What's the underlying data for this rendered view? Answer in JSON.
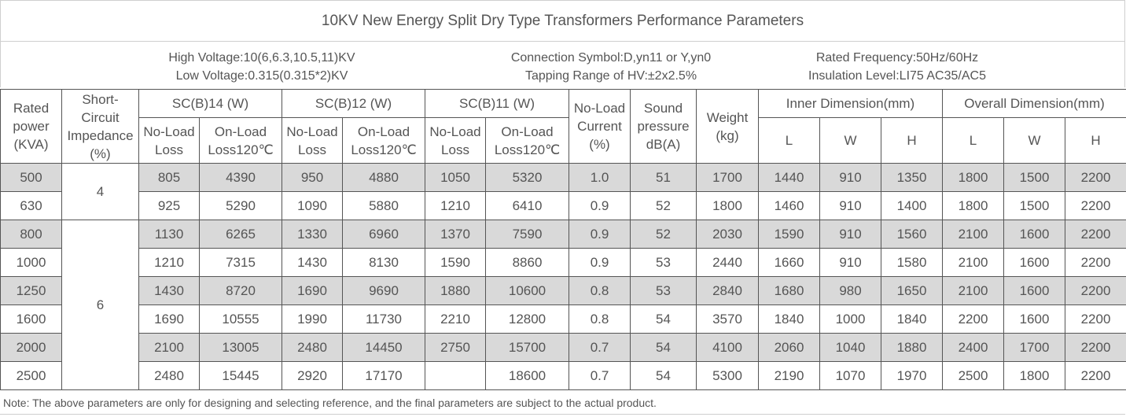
{
  "title": "10KV New Energy Split Dry Type Transformers Performance Parameters",
  "specs": {
    "high_voltage": "High Voltage:10(6,6.3,10.5,11)KV",
    "low_voltage": "Low Voltage:0.315(0.315*2)KV",
    "connection": "Connection Symbol:D,yn11 or Y,yn0",
    "tapping": "Tapping Range of HV:±2x2.5%",
    "frequency": "Rated Frequency:50Hz/60Hz",
    "insulation": "Insulation Level:LI75 AC35/AC5"
  },
  "headers": {
    "rated_power": [
      "Rated",
      "power",
      "(KVA)"
    ],
    "impedance": [
      "Short-",
      "Circuit",
      "Impedance",
      "(%)"
    ],
    "sc14": "SC(B)14 (W)",
    "sc12": "SC(B)12 (W)",
    "sc11": "SC(B)11 (W)",
    "no_load_loss": [
      "No-Load",
      "Loss"
    ],
    "on_load_loss": [
      "On-Load",
      "Loss120℃"
    ],
    "no_load_current": [
      "No-Load",
      "Current",
      "(%)"
    ],
    "sound": [
      "Sound",
      "pressure",
      "dB(A)"
    ],
    "weight": [
      "Weight",
      "(kg)"
    ],
    "inner_dim": "Inner Dimension(mm)",
    "overall_dim": "Overall Dimension(mm)",
    "l": "L",
    "w": "W",
    "h": "H"
  },
  "impedance_groups": [
    "4",
    "6"
  ],
  "rows": [
    {
      "kva": "500",
      "sc14_nl": "805",
      "sc14_ol": "4390",
      "sc12_nl": "950",
      "sc12_ol": "4880",
      "sc11_nl": "1050",
      "sc11_ol": "5320",
      "nlc": "1.0",
      "sound": "51",
      "weight": "1700",
      "in_l": "1440",
      "in_w": "910",
      "in_h": "1350",
      "ov_l": "1800",
      "ov_w": "1500",
      "ov_h": "2200"
    },
    {
      "kva": "630",
      "sc14_nl": "925",
      "sc14_ol": "5290",
      "sc12_nl": "1090",
      "sc12_ol": "5880",
      "sc11_nl": "1210",
      "sc11_ol": "6410",
      "nlc": "0.9",
      "sound": "52",
      "weight": "1800",
      "in_l": "1460",
      "in_w": "910",
      "in_h": "1400",
      "ov_l": "1800",
      "ov_w": "1500",
      "ov_h": "2200"
    },
    {
      "kva": "800",
      "sc14_nl": "1130",
      "sc14_ol": "6265",
      "sc12_nl": "1330",
      "sc12_ol": "6960",
      "sc11_nl": "1370",
      "sc11_ol": "7590",
      "nlc": "0.9",
      "sound": "52",
      "weight": "2030",
      "in_l": "1590",
      "in_w": "910",
      "in_h": "1560",
      "ov_l": "2100",
      "ov_w": "1600",
      "ov_h": "2200"
    },
    {
      "kva": "1000",
      "sc14_nl": "1210",
      "sc14_ol": "7315",
      "sc12_nl": "1430",
      "sc12_ol": "8130",
      "sc11_nl": "1590",
      "sc11_ol": "8860",
      "nlc": "0.9",
      "sound": "53",
      "weight": "2440",
      "in_l": "1660",
      "in_w": "910",
      "in_h": "1580",
      "ov_l": "2100",
      "ov_w": "1600",
      "ov_h": "2200"
    },
    {
      "kva": "1250",
      "sc14_nl": "1430",
      "sc14_ol": "8720",
      "sc12_nl": "1690",
      "sc12_ol": "9690",
      "sc11_nl": "1880",
      "sc11_ol": "10600",
      "nlc": "0.8",
      "sound": "53",
      "weight": "2840",
      "in_l": "1680",
      "in_w": "980",
      "in_h": "1650",
      "ov_l": "2100",
      "ov_w": "1600",
      "ov_h": "2200"
    },
    {
      "kva": "1600",
      "sc14_nl": "1690",
      "sc14_ol": "10555",
      "sc12_nl": "1990",
      "sc12_ol": "11730",
      "sc11_nl": "2210",
      "sc11_ol": "12800",
      "nlc": "0.8",
      "sound": "54",
      "weight": "3570",
      "in_l": "1840",
      "in_w": "1000",
      "in_h": "1840",
      "ov_l": "2200",
      "ov_w": "1600",
      "ov_h": "2200"
    },
    {
      "kva": "2000",
      "sc14_nl": "2100",
      "sc14_ol": "13005",
      "sc12_nl": "2480",
      "sc12_ol": "14450",
      "sc11_nl": "2750",
      "sc11_ol": "15700",
      "nlc": "0.7",
      "sound": "54",
      "weight": "4100",
      "in_l": "2060",
      "in_w": "1040",
      "in_h": "1880",
      "ov_l": "2400",
      "ov_w": "1700",
      "ov_h": "2200"
    },
    {
      "kva": "2500",
      "sc14_nl": "2480",
      "sc14_ol": "15445",
      "sc12_nl": "2920",
      "sc12_ol": "17170",
      "sc11_nl": "",
      "sc11_ol": "18600",
      "nlc": "0.7",
      "sound": "54",
      "weight": "5300",
      "in_l": "2190",
      "in_w": "1070",
      "in_h": "1970",
      "ov_l": "2500",
      "ov_w": "1800",
      "ov_h": "2200"
    }
  ],
  "note": "Note: The above parameters are only for designing and selecting  reference, and the final parameters are subject to the actual product."
}
